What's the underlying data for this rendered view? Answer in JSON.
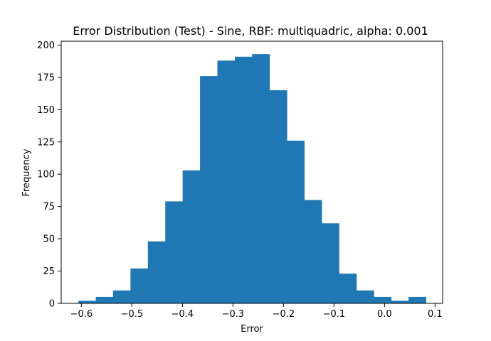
{
  "chart_data": {
    "type": "bar",
    "title": "Error Distribution (Test) - Sine, RBF: multiquadric, alpha: 0.001",
    "xlabel": "Error",
    "ylabel": "Frequency",
    "xlim": [
      -0.64,
      0.115
    ],
    "ylim": [
      0,
      203
    ],
    "bin_start": -0.606,
    "bin_width": 0.0344,
    "values": [
      2,
      5,
      10,
      27,
      48,
      79,
      103,
      176,
      188,
      191,
      193,
      165,
      126,
      80,
      62,
      23,
      10,
      5,
      2,
      5
    ],
    "bar_color": "#1f77b4",
    "grid": false,
    "legend": "none",
    "x_ticks": [
      {
        "value": -0.6,
        "label": "−0.6"
      },
      {
        "value": -0.5,
        "label": "−0.5"
      },
      {
        "value": -0.4,
        "label": "−0.4"
      },
      {
        "value": -0.3,
        "label": "−0.3"
      },
      {
        "value": -0.2,
        "label": "−0.2"
      },
      {
        "value": -0.1,
        "label": "−0.1"
      },
      {
        "value": 0.0,
        "label": "0.0"
      },
      {
        "value": 0.1,
        "label": "0.1"
      }
    ],
    "y_ticks": [
      {
        "value": 0,
        "label": "0"
      },
      {
        "value": 25,
        "label": "25"
      },
      {
        "value": 50,
        "label": "50"
      },
      {
        "value": 75,
        "label": "75"
      },
      {
        "value": 100,
        "label": "100"
      },
      {
        "value": 125,
        "label": "125"
      },
      {
        "value": 150,
        "label": "150"
      },
      {
        "value": 175,
        "label": "175"
      },
      {
        "value": 200,
        "label": "200"
      }
    ]
  }
}
